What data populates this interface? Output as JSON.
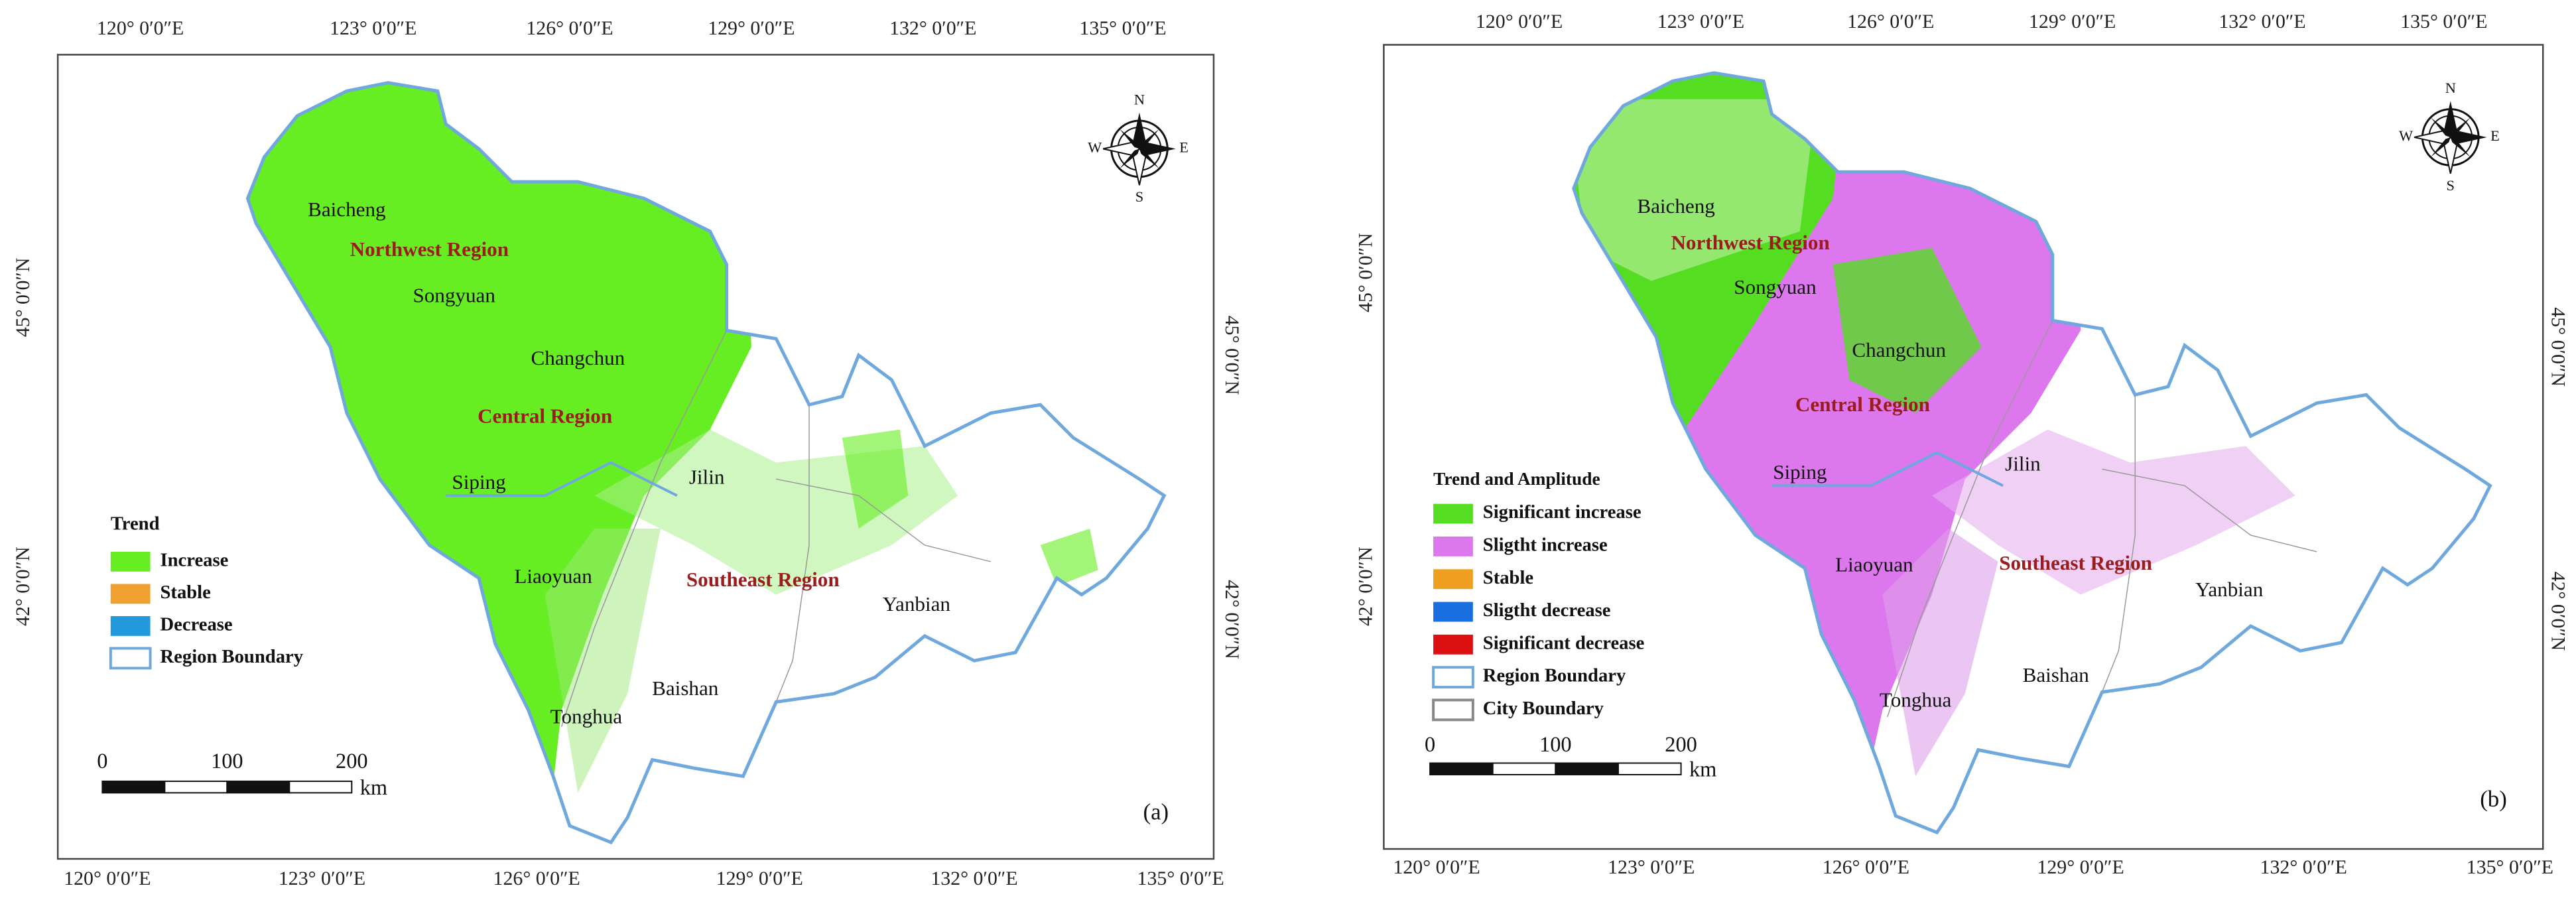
{
  "panels": [
    {
      "label": "(a)",
      "top_lon_ticks": [
        "120° 0′0″E",
        "123° 0′0″E",
        "126° 0′0″E",
        "129° 0′0″E",
        "132° 0′0″E",
        "135° 0′0″E"
      ],
      "bottom_lon_ticks": [
        "120° 0′0″E",
        "123° 0′0″E",
        "126° 0′0″E",
        "129° 0′0″E",
        "132° 0′0″E",
        "135° 0′0″E"
      ],
      "left_lat_ticks": [
        "45° 0′0″N",
        "42° 0′0″N"
      ],
      "right_lat_ticks": [
        "45° 0′0″N",
        "42° 0′0″N"
      ],
      "cities": [
        "Baicheng",
        "Songyuan",
        "Changchun",
        "Siping",
        "Liaoyuan",
        "Jilin",
        "Yanbian",
        "Baishan",
        "Tonghua"
      ],
      "regions": [
        "Northwest Region",
        "Central Region",
        "Southeast Region"
      ],
      "legend": {
        "title": "Trend",
        "items": [
          {
            "label": "Increase",
            "color": "#66ee22"
          },
          {
            "label": "Stable",
            "color": "#f0a030"
          },
          {
            "label": "Decrease",
            "color": "#2299dd"
          },
          {
            "label": "Region Boundary",
            "color": "#6fa8dc",
            "style": "outline"
          }
        ]
      },
      "scale_bar": {
        "ticks": [
          "0",
          "100",
          "200"
        ],
        "unit": "km"
      },
      "compass": {
        "N": "N",
        "S": "S",
        "E": "E",
        "W": "W"
      }
    },
    {
      "label": "(b)",
      "top_lon_ticks": [
        "120° 0′0″E",
        "123° 0′0″E",
        "126° 0′0″E",
        "129° 0′0″E",
        "132° 0′0″E",
        "135° 0′0″E"
      ],
      "bottom_lon_ticks": [
        "120° 0′0″E",
        "123° 0′0″E",
        "126° 0′0″E",
        "129° 0′0″E",
        "132° 0′0″E",
        "135° 0′0″E"
      ],
      "left_lat_ticks": [
        "45° 0′0″N",
        "42° 0′0″N"
      ],
      "right_lat_ticks": [
        "45° 0′0″N",
        "42° 0′0″N"
      ],
      "cities": [
        "Baicheng",
        "Songyuan",
        "Changchun",
        "Siping",
        "Liaoyuan",
        "Jilin",
        "Yanbian",
        "Baishan",
        "Tonghua"
      ],
      "regions": [
        "Northwest Region",
        "Central Region",
        "Southeast Region"
      ],
      "legend": {
        "title": "Trend and Amplitude",
        "items": [
          {
            "label": "Significant increase",
            "color": "#55dd22"
          },
          {
            "label": "Sligtht increase",
            "color": "#dd77ee"
          },
          {
            "label": "Stable",
            "color": "#f0a020"
          },
          {
            "label": "Sligtht decrease",
            "color": "#1a6fe0"
          },
          {
            "label": "Significant decrease",
            "color": "#dd1111"
          },
          {
            "label": "Region Boundary",
            "color": "#6fa8dc",
            "style": "outline"
          },
          {
            "label": "City Boundary",
            "color": "#888888",
            "style": "outline"
          }
        ]
      },
      "scale_bar": {
        "ticks": [
          "0",
          "100",
          "200"
        ],
        "unit": "km"
      },
      "compass": {
        "N": "N",
        "S": "S",
        "E": "E",
        "W": "W"
      }
    }
  ]
}
